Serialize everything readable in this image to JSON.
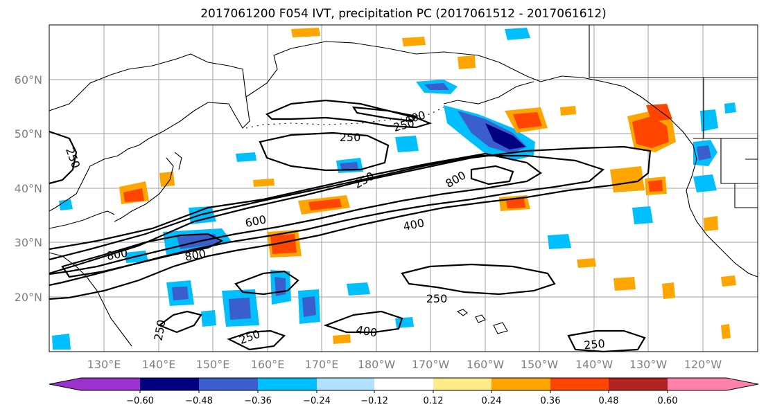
{
  "title": "2017061200 F054 IVT, precipitation PC (2017061512 - 2017061612)",
  "map": {
    "lon_labels": [
      "130°E",
      "140°E",
      "150°E",
      "160°E",
      "170°E",
      "180°W",
      "170°W",
      "160°W",
      "150°W",
      "140°W",
      "130°W",
      "120°W"
    ],
    "lat_labels": [
      "60°N",
      "50°N",
      "40°N",
      "30°N",
      "20°N"
    ]
  },
  "ivt_contour_labels": [
    "250",
    "400",
    "250",
    "250",
    "250",
    "800",
    "250",
    "600",
    "400",
    "800",
    "800",
    "250",
    "400",
    "250",
    "250"
  ],
  "colorbar": {
    "ticks": [
      "−0.60",
      "−0.48",
      "−0.36",
      "−0.24",
      "−0.12",
      "0.12",
      "0.24",
      "0.36",
      "0.48",
      "0.60"
    ],
    "colors": [
      "#9a32cd",
      "#000080",
      "#3a5fcd",
      "#00bfff",
      "#b0e2ff",
      "#ffffff",
      "#ffeb8a",
      "#ffa500",
      "#ff4500",
      "#b22222",
      "#ff82ab"
    ]
  }
}
